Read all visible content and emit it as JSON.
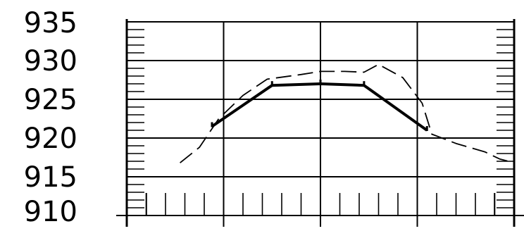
{
  "chart_data": {
    "type": "line",
    "title": "",
    "xlabel": "",
    "ylabel": "",
    "ylim": [
      910,
      935
    ],
    "xlim": [
      0,
      4
    ],
    "y_ticks": [
      "935",
      "930",
      "925",
      "920",
      "915",
      "910"
    ],
    "y_tick_values": [
      935,
      930,
      925,
      920,
      915,
      910
    ],
    "x_gridlines": [
      1,
      2,
      3
    ],
    "grid": true,
    "legend": "none",
    "series": [
      {
        "style": "solid-thick",
        "color": "#000000",
        "points": [
          [
            0.88,
            921.5
          ],
          [
            1.5,
            926.8
          ],
          [
            2.0,
            927.0
          ],
          [
            2.45,
            926.8
          ],
          [
            3.1,
            921.0
          ]
        ]
      },
      {
        "style": "dashed",
        "color": "#000000",
        "points": [
          [
            0.55,
            916.8
          ],
          [
            0.75,
            918.8
          ],
          [
            0.95,
            922.5
          ],
          [
            1.2,
            925.5
          ],
          [
            1.45,
            927.6
          ],
          [
            1.8,
            928.2
          ],
          [
            2.0,
            928.6
          ],
          [
            2.25,
            928.6
          ],
          [
            2.45,
            928.5
          ],
          [
            2.6,
            929.5
          ],
          [
            2.85,
            927.8
          ],
          [
            3.05,
            924.5
          ],
          [
            3.15,
            920.5
          ],
          [
            3.4,
            919.3
          ],
          [
            3.7,
            918.2
          ],
          [
            3.85,
            917.3
          ],
          [
            4.0,
            916.8
          ]
        ]
      }
    ]
  }
}
